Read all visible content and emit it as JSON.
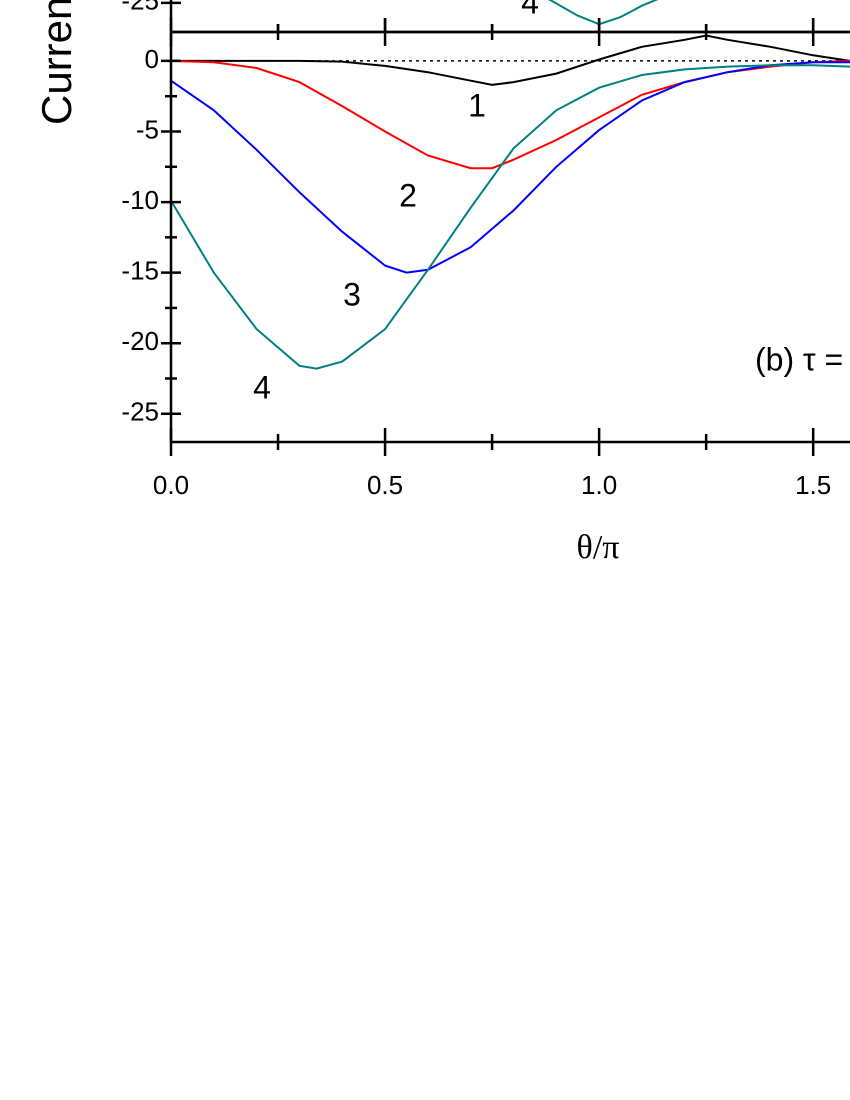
{
  "chart_data": [
    {
      "type": "line",
      "xlim": [
        0,
        1.586
      ],
      "ylim": [
        -27.05,
        -24.8
      ],
      "yticks": [
        -25
      ],
      "xticks_unlabeled": [
        0.5,
        1,
        1.5
      ],
      "xminorticks": [
        0.25,
        0.75,
        1.25
      ],
      "series": [
        {
          "name": "4",
          "color": "#008080",
          "x": [
            0.88,
            0.95,
            1.0,
            1.05,
            1.1,
            1.14
          ],
          "values": [
            -24.7,
            -25.9,
            -26.5,
            -26.0,
            -25.2,
            -24.7
          ]
        }
      ]
    },
    {
      "type": "line",
      "y_label": "Curren",
      "x_label": "θ/π",
      "annotation": "(b) τ =",
      "xlim": [
        0,
        1.586
      ],
      "ylim": [
        -27,
        2.05
      ],
      "xticks": [
        {
          "value": 0,
          "label": "0.0"
        },
        0.5,
        {
          "value": 1,
          "label": "1.0"
        },
        1.5
      ],
      "xminorticks": [
        0.25,
        0.75,
        1.25
      ],
      "yticks": [
        0,
        -5,
        -10,
        -15,
        -20,
        -25
      ],
      "yminorticks": [
        -2.5,
        -7.5,
        -12.5,
        -17.5,
        -22.5
      ],
      "hline": 0,
      "series": [
        {
          "name": "1",
          "color": "#000000",
          "x": [
            0,
            0.1,
            0.2,
            0.3,
            0.4,
            0.5,
            0.6,
            0.7,
            0.75,
            0.8,
            0.9,
            1.0,
            1.1,
            1.2,
            1.25,
            1.3,
            1.4,
            1.5,
            1.586
          ],
          "values": [
            0,
            0,
            0,
            0,
            -0.05,
            -0.35,
            -0.8,
            -1.4,
            -1.7,
            -1.5,
            -0.9,
            0.1,
            1.0,
            1.5,
            1.8,
            1.5,
            1.0,
            0.4,
            0
          ]
        },
        {
          "name": "2",
          "color": "#ff0000",
          "x": [
            0,
            0.1,
            0.2,
            0.3,
            0.4,
            0.5,
            0.6,
            0.7,
            0.75,
            0.8,
            0.9,
            1.0,
            1.1,
            1.2,
            1.3,
            1.4,
            1.5,
            1.586
          ],
          "values": [
            0,
            -0.1,
            -0.5,
            -1.5,
            -3.2,
            -5.0,
            -6.7,
            -7.6,
            -7.6,
            -7.0,
            -5.6,
            -4.0,
            -2.4,
            -1.5,
            -0.8,
            -0.4,
            -0.1,
            0
          ]
        },
        {
          "name": "3",
          "color": "#0000ff",
          "x": [
            0,
            0.1,
            0.2,
            0.3,
            0.4,
            0.5,
            0.55,
            0.6,
            0.7,
            0.8,
            0.9,
            1.0,
            1.1,
            1.2,
            1.3,
            1.4,
            1.5,
            1.586
          ],
          "values": [
            -1.4,
            -3.5,
            -6.3,
            -9.3,
            -12.1,
            -14.5,
            -15.0,
            -14.8,
            -13.2,
            -10.6,
            -7.5,
            -4.9,
            -2.8,
            -1.5,
            -0.8,
            -0.3,
            -0.1,
            -0.1
          ]
        },
        {
          "name": "4",
          "color": "#008080",
          "x": [
            0,
            0.1,
            0.2,
            0.3,
            0.34,
            0.4,
            0.5,
            0.6,
            0.7,
            0.8,
            0.9,
            1.0,
            1.1,
            1.2,
            1.3,
            1.4,
            1.5,
            1.586
          ],
          "values": [
            -9.9,
            -15.0,
            -19.0,
            -21.6,
            -21.8,
            -21.3,
            -19.0,
            -14.8,
            -10.4,
            -6.2,
            -3.5,
            -1.9,
            -1.0,
            -0.6,
            -0.4,
            -0.3,
            -0.3,
            -0.4
          ]
        }
      ]
    }
  ]
}
